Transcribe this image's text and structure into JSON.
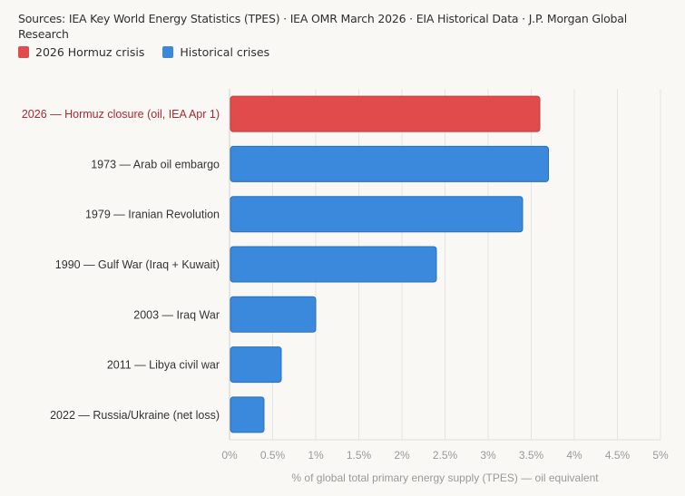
{
  "sources": "Sources: IEA Key World Energy Statistics (TPES) · IEA OMR March 2026 · EIA Historical Data · J.P. Morgan Global Research",
  "legend": [
    {
      "label": "2026 Hormuz crisis",
      "color": "#e24b4b"
    },
    {
      "label": "Historical crises",
      "color": "#3a89dc"
    }
  ],
  "chart_data": {
    "type": "bar",
    "orientation": "horizontal",
    "title": "",
    "xlabel": "% of global total primary energy supply (TPES) — oil equivalent",
    "ylabel": "",
    "xlim": [
      0,
      5
    ],
    "xticks": [
      0,
      0.5,
      1,
      1.5,
      2,
      2.5,
      3,
      3.5,
      4,
      4.5,
      5
    ],
    "xtick_labels": [
      "0%",
      "0.5%",
      "1%",
      "1.5%",
      "2%",
      "2.5%",
      "3%",
      "3.5%",
      "4%",
      "4.5%",
      "5%"
    ],
    "grid": "vertical",
    "legend_position": "top-left",
    "categories": [
      "2026 — Hormuz closure (oil, IEA Apr 1)",
      "1973 — Arab oil embargo",
      "1979 — Iranian Revolution",
      "1990 — Gulf War (Iraq + Kuwait)",
      "2003 — Iraq War",
      "2011 — Libya civil war",
      "2022 — Russia/Ukraine (net loss)"
    ],
    "values": [
      3.6,
      3.7,
      3.4,
      2.4,
      1.0,
      0.6,
      0.4
    ],
    "groups": [
      "2026 Hormuz crisis",
      "Historical crises",
      "Historical crises",
      "Historical crises",
      "Historical crises",
      "Historical crises",
      "Historical crises"
    ],
    "colors": {
      "2026 Hormuz crisis": "#e24b4b",
      "Historical crises": "#3a89dc",
      "highlight_label": "#a8292f",
      "label": "#333333"
    }
  }
}
